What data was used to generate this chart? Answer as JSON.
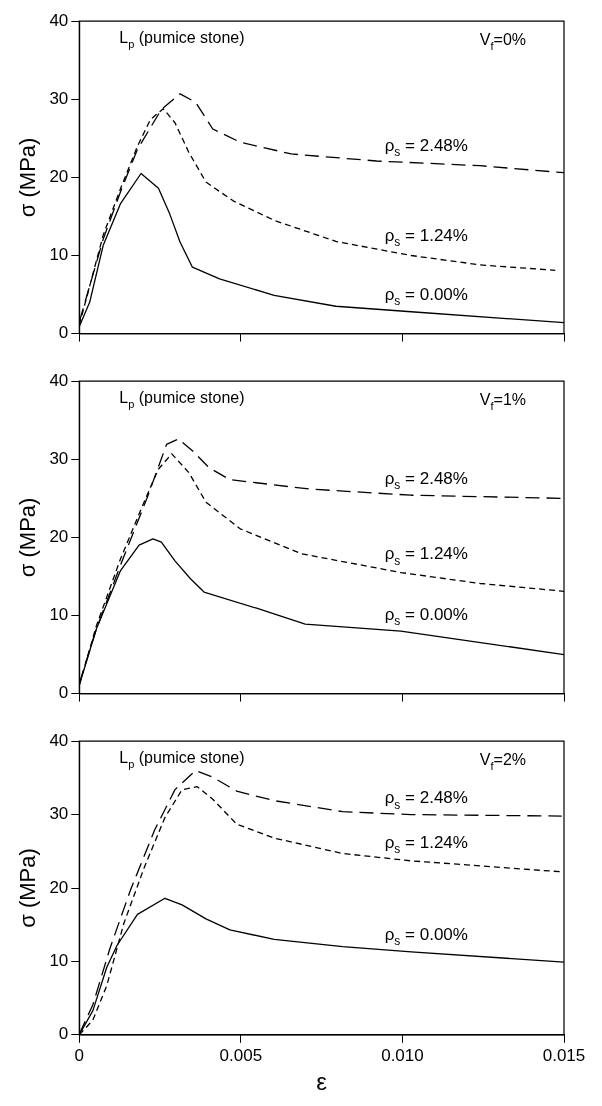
{
  "chart_data": [
    {
      "type": "line",
      "ylabel": "σ (MPa)",
      "xlim": [
        0,
        0.015
      ],
      "xticks": [
        0,
        0.005,
        0.01,
        0.015
      ],
      "ylim": [
        0,
        40
      ],
      "yticks": [
        0,
        10,
        20,
        30,
        40
      ],
      "grid": false,
      "legend": false,
      "marker": "none",
      "tick_labels": "y",
      "annotations": [
        "L$_{p}$ (pumice stone)",
        "V$_{f}$=0%"
      ],
      "series": [
        {
          "name": "ρ$_{s}$ = 0.00%",
          "color": "#000000",
          "line_style": "solid",
          "x": [
            0,
            0.00032,
            0.00074,
            0.00127,
            0.00191,
            0.00245,
            0.0028,
            0.00312,
            0.0035,
            0.00434,
            0.00603,
            0.00794,
            0.01027,
            0.015
          ],
          "values": [
            0.9,
            4,
            11.3,
            16.6,
            20.5,
            18.6,
            15.3,
            11.7,
            8.5,
            7,
            4.9,
            3.5,
            2.8,
            1.4
          ]
        },
        {
          "name": "ρ$_{s}$ = 1.24%",
          "color": "#000000",
          "line_style": "dashed",
          "x": [
            0,
            0.00074,
            0.00127,
            0.0018,
            0.0022,
            0.0026,
            0.00296,
            0.00339,
            0.00392,
            0.00476,
            0.00603,
            0.00794,
            0.01027,
            0.0124,
            0.01473
          ],
          "values": [
            1.1,
            12.6,
            18.5,
            24,
            27.4,
            28.8,
            27,
            23.2,
            19.4,
            17,
            14.5,
            11.8,
            10,
            8.8,
            8.1
          ]
        },
        {
          "name": "ρ$_{s}$ = 2.48%",
          "color": "#000000",
          "line_style": "dashed",
          "x": [
            0,
            0.00074,
            0.00127,
            0.0018,
            0.00254,
            0.00312,
            0.0036,
            0.00413,
            0.00498,
            0.00656,
            0.0092,
            0.0124,
            0.015
          ],
          "values": [
            1.5,
            12.1,
            18.1,
            23.6,
            28.7,
            30.7,
            29.6,
            26.2,
            24.5,
            23,
            22.1,
            21.5,
            20.6
          ]
        }
      ]
    },
    {
      "type": "line",
      "ylabel": "σ (MPa)",
      "xlim": [
        0,
        0.015
      ],
      "xticks": [
        0,
        0.005,
        0.01,
        0.015
      ],
      "ylim": [
        0,
        40
      ],
      "yticks": [
        0,
        10,
        20,
        30,
        40
      ],
      "grid": false,
      "legend": false,
      "marker": "none",
      "tick_labels": "y",
      "annotations": [
        "L$_{p}$ (pumice stone)",
        "V$_{f}$=1%"
      ],
      "series": [
        {
          "name": "ρ$_{s}$ = 0.00%",
          "color": "#000000",
          "line_style": "solid",
          "x": [
            0,
            0.00053,
            0.00127,
            0.00185,
            0.00228,
            0.00254,
            0.00296,
            0.00344,
            0.00386,
            0.00551,
            0.00699,
            0.00995,
            0.015
          ],
          "values": [
            1.1,
            8.3,
            15.7,
            19,
            19.8,
            19.4,
            17,
            14.7,
            13,
            10.9,
            8.9,
            8,
            5
          ]
        },
        {
          "name": "ρ$_{s}$ = 1.24%",
          "color": "#000000",
          "line_style": "dashed",
          "x": [
            0,
            0.00053,
            0.00127,
            0.00191,
            0.00244,
            0.00286,
            0.00339,
            0.00392,
            0.00498,
            0.00688,
            0.00995,
            0.0124,
            0.015
          ],
          "values": [
            1.1,
            8.7,
            17.2,
            23.6,
            28.7,
            30.7,
            28.3,
            24.5,
            21.1,
            17.9,
            15.5,
            14.1,
            13.1
          ]
        },
        {
          "name": "ρ$_{s}$ = 2.48%",
          "color": "#000000",
          "line_style": "dashed",
          "x": [
            0,
            0.00053,
            0.00127,
            0.00212,
            0.0027,
            0.00307,
            0.0035,
            0.00402,
            0.00466,
            0.0071,
            0.01027,
            0.015
          ],
          "values": [
            1.3,
            8.3,
            16.4,
            25.3,
            31.9,
            32.6,
            31.1,
            28.9,
            27.4,
            26.2,
            25.4,
            25
          ]
        }
      ]
    },
    {
      "type": "line",
      "ylabel": "σ (MPa)",
      "xlabel": "ε",
      "xlim": [
        0,
        0.015
      ],
      "xticks": [
        0,
        0.005,
        {
          "value": 0.01,
          "label": "0.010"
        },
        0.015
      ],
      "ylim": [
        0,
        40
      ],
      "yticks": [
        0,
        10,
        20,
        30,
        40
      ],
      "grid": false,
      "legend": false,
      "marker": "none",
      "annotations": [
        "L$_{p}$ (pumice stone)",
        "V$_{f}$=2%"
      ],
      "series": [
        {
          "name": "ρ$_{s}$ = 0.00%",
          "color": "#000000",
          "line_style": "solid",
          "x": [
            0,
            0.00042,
            0.00085,
            0.00117,
            0.0018,
            0.00265,
            0.00318,
            0.00392,
            0.00466,
            0.00603,
            0.00815,
            0.01027,
            0.015
          ],
          "values": [
            0,
            3.3,
            9.2,
            12.2,
            16.4,
            18.6,
            17.7,
            15.8,
            14.3,
            13,
            12,
            11.3,
            9.9
          ]
        },
        {
          "name": "ρ$_{s}$ = 1.24%",
          "color": "#000000",
          "line_style": "dashed",
          "x": [
            0,
            0.00042,
            0.00085,
            0.00138,
            0.00201,
            0.00265,
            0.00318,
            0.00365,
            0.00413,
            0.00487,
            0.00603,
            0.00815,
            0.01027,
            0.01493
          ],
          "values": [
            0,
            2,
            6.7,
            15.2,
            22.8,
            29.6,
            33.4,
            33.8,
            32.1,
            28.7,
            26.8,
            24.7,
            23.7,
            22.2
          ]
        },
        {
          "name": "ρ$_{s}$ = 2.48%",
          "color": "#000000",
          "line_style": "dashed",
          "x": [
            0,
            0.00042,
            0.00095,
            0.00159,
            0.00233,
            0.00296,
            0.0036,
            0.00413,
            0.00487,
            0.00603,
            0.00815,
            0.01027,
            0.01493
          ],
          "values": [
            0.1,
            4.1,
            11.8,
            19.8,
            27.9,
            33.4,
            36,
            35.1,
            33.2,
            31.9,
            30.4,
            30,
            29.8
          ]
        }
      ]
    }
  ]
}
